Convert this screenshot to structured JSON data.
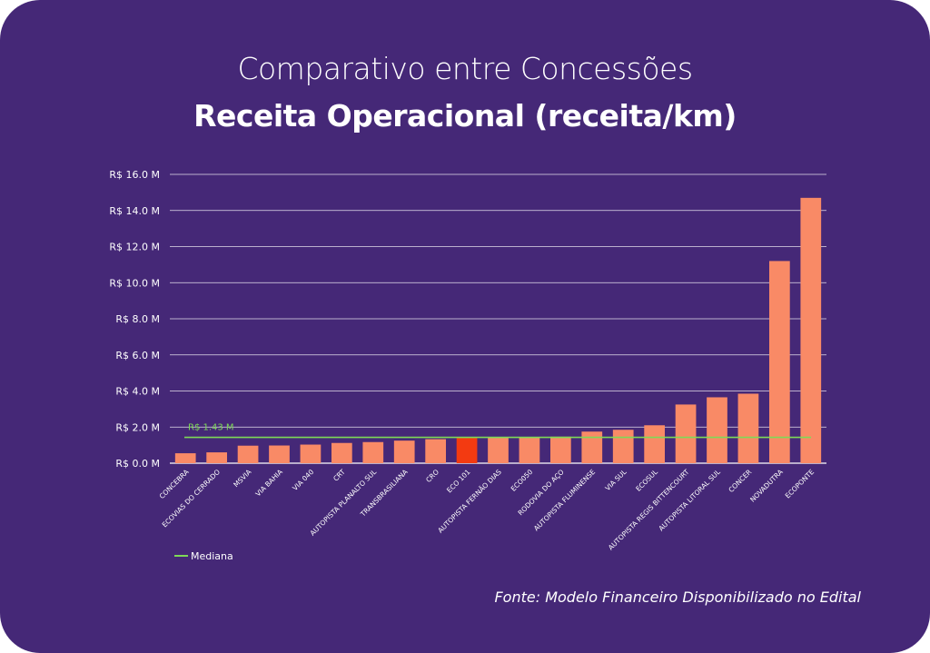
{
  "title_line1": "Comparativo entre Concessões",
  "title_line2": "Receita Operacional (receita/km)",
  "source": "Fonte: Modelo Financeiro Disponibilizado no Edital",
  "colors": {
    "background": "#452877",
    "bar": "#F98A66",
    "bar_highlight": "#F33A11",
    "median": "#7ED957",
    "grid": "#FFFFFF",
    "text": "#FFFFFF"
  },
  "chart_data": {
    "type": "bar",
    "title": "Receita Operacional (receita/km)",
    "ylim": [
      0,
      16
    ],
    "ytick_values": [
      0,
      2,
      4,
      6,
      8,
      10,
      12,
      14,
      16
    ],
    "ytick_labels": [
      "R$ 0.0 M",
      "R$ 2.0 M",
      "R$ 4.0 M",
      "R$ 6.0 M",
      "R$ 8.0 M",
      "R$ 10.0 M",
      "R$ 12.0 M",
      "R$ 14.0 M",
      "R$ 16.0 M"
    ],
    "grid": true,
    "categories": [
      "CONCEBRA",
      "ECOVIAS DO CERRADO",
      "MSVIA",
      "VIA BAHIA",
      "VIA 040",
      "CRT",
      "AUTOPISTA PLANALTO SUL",
      "TRANSBRASILIANA",
      "CRO",
      "ECO 101",
      "AUTOPISTA FERNÃO DIAS",
      "ECO050",
      "RODOVIA DO AÇO",
      "AUTOPISTA FLUMINENSE",
      "VIA SUL",
      "ECOSUL",
      "AUTOPISTA REGIS BITTENCOURT",
      "AUTOPISTA LITORAL SUL",
      "CONCER",
      "NOVADUTRA",
      "ECOPONTE"
    ],
    "values": [
      0.55,
      0.6,
      0.97,
      0.98,
      1.03,
      1.12,
      1.17,
      1.25,
      1.33,
      1.43,
      1.43,
      1.45,
      1.47,
      1.75,
      1.85,
      2.1,
      3.25,
      3.65,
      3.85,
      11.2,
      14.7
    ],
    "highlight_index": 9,
    "median": {
      "value": 1.43,
      "label": "R$ 1.43 M"
    },
    "legend": {
      "entries": [
        "Mediana"
      ],
      "position": "bottom-left"
    }
  }
}
